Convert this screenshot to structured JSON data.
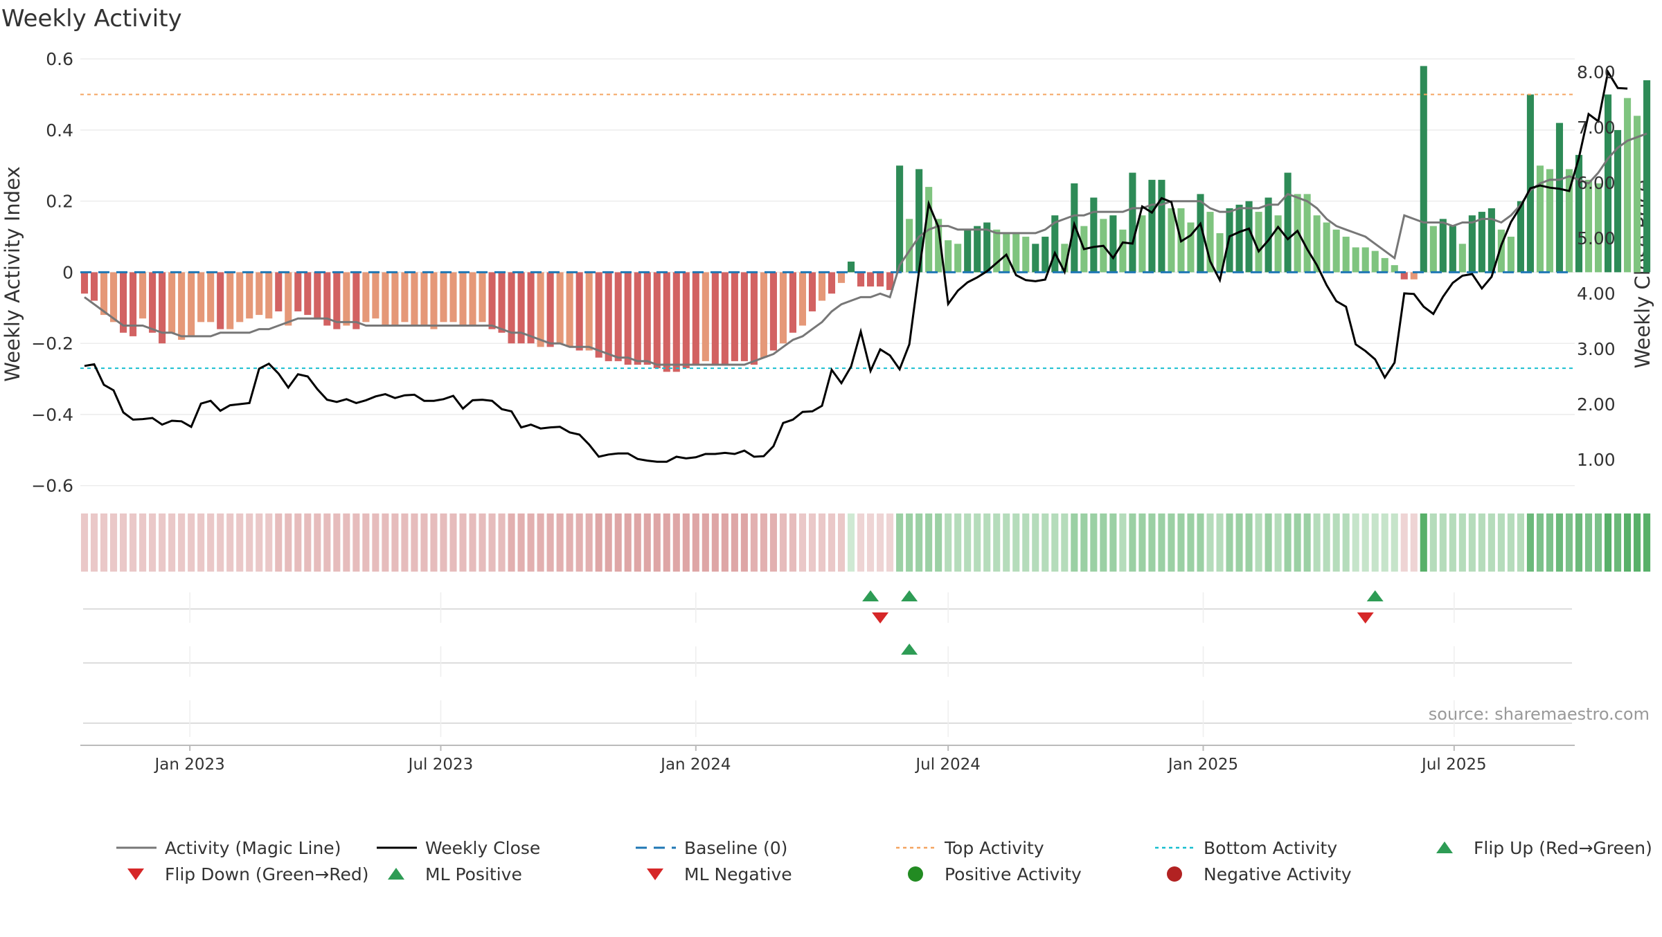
{
  "chart_data": {
    "type": "bar",
    "title": "Weekly Activity",
    "ylabel": "Weekly Activity Index",
    "y2label": "Weekly Close Price",
    "ylim": [
      -0.62,
      0.61
    ],
    "y2lim": [
      0.4,
      8.3
    ],
    "yticks": [
      0.6,
      0.4,
      0.2,
      0,
      -0.2,
      -0.4,
      -0.6
    ],
    "ytick_labels": [
      "0.6",
      "0.4",
      "0.2",
      "0",
      "−0.2",
      "−0.4",
      "−0.6"
    ],
    "y2ticks": [
      8,
      7,
      6,
      5,
      4,
      3,
      2,
      1
    ],
    "y2tick_labels": [
      "8.00",
      "7.00",
      "6.00",
      "5.00",
      "4.00",
      "3.00",
      "2.00",
      "1.00"
    ],
    "x_start": "2022-10-17",
    "x_end": "2025-09-22",
    "x_axis_start": "2022-10-14",
    "x_axis_end": "2025-09-26",
    "x_ticks": [
      "2023-01-01",
      "2023-07-01",
      "2024-01-01",
      "2024-07-01",
      "2025-01-01",
      "2025-07-01"
    ],
    "x_tick_labels": [
      "Jan 2023",
      "Jul 2023",
      "Jan 2024",
      "Jul 2024",
      "Jan 2025",
      "Jul 2025"
    ],
    "grid": true,
    "legend_position": "bottom",
    "top_activity": 0.5,
    "bottom_activity": -0.27,
    "baseline": 0,
    "activity": [
      -0.06,
      -0.08,
      -0.12,
      -0.14,
      -0.17,
      -0.18,
      -0.13,
      -0.17,
      -0.2,
      -0.17,
      -0.19,
      -0.18,
      -0.14,
      -0.14,
      -0.16,
      -0.16,
      -0.14,
      -0.13,
      -0.12,
      -0.13,
      -0.11,
      -0.15,
      -0.11,
      -0.12,
      -0.13,
      -0.15,
      -0.16,
      -0.15,
      -0.16,
      -0.14,
      -0.13,
      -0.15,
      -0.15,
      -0.14,
      -0.15,
      -0.15,
      -0.16,
      -0.14,
      -0.14,
      -0.15,
      -0.15,
      -0.14,
      -0.16,
      -0.17,
      -0.2,
      -0.2,
      -0.2,
      -0.21,
      -0.21,
      -0.2,
      -0.21,
      -0.22,
      -0.22,
      -0.24,
      -0.25,
      -0.25,
      -0.26,
      -0.26,
      -0.26,
      -0.27,
      -0.28,
      -0.28,
      -0.27,
      -0.26,
      -0.25,
      -0.26,
      -0.26,
      -0.25,
      -0.25,
      -0.26,
      -0.24,
      -0.22,
      -0.2,
      -0.17,
      -0.15,
      -0.11,
      -0.08,
      -0.06,
      -0.03,
      0.03,
      -0.04,
      -0.04,
      -0.04,
      -0.05,
      0.3,
      0.15,
      0.29,
      0.24,
      0.15,
      0.09,
      0.08,
      0.12,
      0.13,
      0.14,
      0.12,
      0.11,
      0.11,
      0.1,
      0.08,
      0.1,
      0.16,
      0.08,
      0.25,
      0.13,
      0.21,
      0.15,
      0.16,
      0.12,
      0.28,
      0.16,
      0.26,
      0.26,
      0.18,
      0.18,
      0.14,
      0.22,
      0.17,
      0.11,
      0.18,
      0.19,
      0.2,
      0.17,
      0.21,
      0.16,
      0.28,
      0.22,
      0.22,
      0.16,
      0.14,
      0.12,
      0.1,
      0.07,
      0.07,
      0.06,
      0.04,
      0.02,
      -0.02,
      -0.02,
      0.58,
      0.13,
      0.15,
      0.13,
      0.08,
      0.16,
      0.17,
      0.18,
      0.12,
      0.1,
      0.2,
      0.5,
      0.3,
      0.29,
      0.42,
      0.29,
      0.33,
      0.26,
      0.25,
      0.5,
      0.4,
      0.49,
      0.44,
      0.54
    ],
    "bar_shades": [
      "#d26262",
      "#d26262",
      "#e59878",
      "#e59878",
      "#d26262",
      "#d26262",
      "#e59878",
      "#d26262",
      "#d26262",
      "#e59878",
      "#e59878",
      "#e59878",
      "#e59878",
      "#e59878",
      "#d26262",
      "#e59878",
      "#e59878",
      "#e59878",
      "#e59878",
      "#e59878",
      "#d26262",
      "#e59878",
      "#d26262",
      "#d26262",
      "#d26262",
      "#d26262",
      "#d26262",
      "#e59878",
      "#d26262",
      "#e59878",
      "#e59878",
      "#e59878",
      "#e59878",
      "#e59878",
      "#e59878",
      "#e59878",
      "#e59878",
      "#e59878",
      "#e59878",
      "#e59878",
      "#e59878",
      "#e59878",
      "#d26262",
      "#d26262",
      "#d26262",
      "#d26262",
      "#d26262",
      "#e59878",
      "#d26262",
      "#e59878",
      "#e59878",
      "#d26262",
      "#e59878",
      "#d26262",
      "#d26262",
      "#d26262",
      "#d26262",
      "#d26262",
      "#d26262",
      "#d26262",
      "#d26262",
      "#d26262",
      "#d26262",
      "#d26262",
      "#e59878",
      "#d26262",
      "#d26262",
      "#d26262",
      "#d26262",
      "#d26262",
      "#e59878",
      "#d26262",
      "#e59878",
      "#d26262",
      "#e59878",
      "#d26262",
      "#e59878",
      "#d26262",
      "#e59878",
      "#2e8b57",
      "#d26262",
      "#d26262",
      "#d26262",
      "#d26262",
      "#2e8b57",
      "#7fc47f",
      "#2e8b57",
      "#7fc47f",
      "#7fc47f",
      "#7fc47f",
      "#7fc47f",
      "#2e8b57",
      "#2e8b57",
      "#2e8b57",
      "#7fc47f",
      "#7fc47f",
      "#7fc47f",
      "#7fc47f",
      "#2e8b57",
      "#2e8b57",
      "#2e8b57",
      "#7fc47f",
      "#2e8b57",
      "#7fc47f",
      "#2e8b57",
      "#7fc47f",
      "#2e8b57",
      "#7fc47f",
      "#2e8b57",
      "#7fc47f",
      "#2e8b57",
      "#2e8b57",
      "#7fc47f",
      "#7fc47f",
      "#7fc47f",
      "#2e8b57",
      "#7fc47f",
      "#7fc47f",
      "#2e8b57",
      "#2e8b57",
      "#2e8b57",
      "#7fc47f",
      "#2e8b57",
      "#7fc47f",
      "#2e8b57",
      "#7fc47f",
      "#7fc47f",
      "#7fc47f",
      "#7fc47f",
      "#7fc47f",
      "#7fc47f",
      "#7fc47f",
      "#7fc47f",
      "#7fc47f",
      "#7fc47f",
      "#7fc47f",
      "#d26262",
      "#e59878",
      "#2e8b57",
      "#7fc47f",
      "#2e8b57",
      "#2e8b57",
      "#7fc47f",
      "#2e8b57",
      "#2e8b57",
      "#2e8b57",
      "#7fc47f",
      "#7fc47f",
      "#2e8b57",
      "#2e8b57",
      "#7fc47f",
      "#7fc47f",
      "#2e8b57",
      "#7fc47f",
      "#2e8b57",
      "#7fc47f",
      "#7fc47f",
      "#2e8b57",
      "#2e8b57",
      "#7fc47f",
      "#7fc47f",
      "#2e8b57"
    ],
    "heat_colors": [
      "#eac8c8",
      "#eac8c8",
      "#eac8c8",
      "#eac8c8",
      "#eac8c8",
      "#eac8c8",
      "#eac8c8",
      "#eac8c8",
      "#eac8c8",
      "#eac8c8",
      "#eac8c8",
      "#eac8c8",
      "#eac8c8",
      "#eac8c8",
      "#eac8c8",
      "#eac8c8",
      "#eac8c8",
      "#eac8c8",
      "#eac8c8",
      "#eac8c8",
      "#e6bcbc",
      "#e6bcbc",
      "#e6bcbc",
      "#e6bcbc",
      "#e6bcbc",
      "#e6bcbc",
      "#e6bcbc",
      "#e6bcbc",
      "#e6bcbc",
      "#e6bcbc",
      "#e6bcbc",
      "#e6bcbc",
      "#e6bcbc",
      "#e6bcbc",
      "#e6bcbc",
      "#e6bcbc",
      "#e6bcbc",
      "#e6bcbc",
      "#e6bcbc",
      "#e6bcbc",
      "#e6bcbc",
      "#e6bcbc",
      "#e6bcbc",
      "#e6bcbc",
      "#e2b0b0",
      "#e2b0b0",
      "#e2b0b0",
      "#e2b0b0",
      "#e2b0b0",
      "#e2b0b0",
      "#e2b0b0",
      "#e2b0b0",
      "#e2b0b0",
      "#dea6a6",
      "#dea6a6",
      "#dea6a6",
      "#dea6a6",
      "#dea6a6",
      "#dea6a6",
      "#dea6a6",
      "#dea6a6",
      "#dea6a6",
      "#dea6a6",
      "#dea6a6",
      "#dea6a6",
      "#dea6a6",
      "#dea6a6",
      "#dea6a6",
      "#dea6a6",
      "#e2b0b0",
      "#e2b0b0",
      "#e2b0b0",
      "#e6bcbc",
      "#e6bcbc",
      "#eac8c8",
      "#eac8c8",
      "#eac8c8",
      "#eac8c8",
      "#eac8c8",
      "#cfe9d3",
      "#eed4d4",
      "#eed4d4",
      "#eed4d4",
      "#eed4d4",
      "#9bd0a4",
      "#9bd0a4",
      "#9bd0a4",
      "#9bd0a4",
      "#9bd0a4",
      "#b5dcbb",
      "#b5dcbb",
      "#b5dcbb",
      "#b5dcbb",
      "#b5dcbb",
      "#b5dcbb",
      "#b5dcbb",
      "#b5dcbb",
      "#b5dcbb",
      "#b5dcbb",
      "#b5dcbb",
      "#b5dcbb",
      "#b5dcbb",
      "#9bd0a4",
      "#9bd0a4",
      "#9bd0a4",
      "#9bd0a4",
      "#9bd0a4",
      "#b5dcbb",
      "#9bd0a4",
      "#9bd0a4",
      "#9bd0a4",
      "#9bd0a4",
      "#9bd0a4",
      "#9bd0a4",
      "#9bd0a4",
      "#9bd0a4",
      "#b5dcbb",
      "#b5dcbb",
      "#9bd0a4",
      "#9bd0a4",
      "#9bd0a4",
      "#b5dcbb",
      "#9bd0a4",
      "#b5dcbb",
      "#9bd0a4",
      "#9bd0a4",
      "#9bd0a4",
      "#b5dcbb",
      "#b5dcbb",
      "#b5dcbb",
      "#b5dcbb",
      "#c6e4ca",
      "#c6e4ca",
      "#c6e4ca",
      "#c6e4ca",
      "#c6e4ca",
      "#eed4d4",
      "#eed4d4",
      "#58b069",
      "#b5dcbb",
      "#b5dcbb",
      "#b5dcbb",
      "#b5dcbb",
      "#b5dcbb",
      "#b5dcbb",
      "#b5dcbb",
      "#b5dcbb",
      "#b5dcbb",
      "#b5dcbb",
      "#6bb97a",
      "#7cc18a",
      "#7cc18a",
      "#6bb97a",
      "#7cc18a",
      "#6bb97a",
      "#7cc18a",
      "#7cc18a",
      "#58b069",
      "#6bb97a",
      "#58b069",
      "#58b069",
      "#58b069"
    ],
    "magic_line": [
      -0.07,
      -0.09,
      -0.11,
      -0.13,
      -0.15,
      -0.15,
      -0.15,
      -0.16,
      -0.17,
      -0.17,
      -0.18,
      -0.18,
      -0.18,
      -0.18,
      -0.17,
      -0.17,
      -0.17,
      -0.17,
      -0.16,
      -0.16,
      -0.15,
      -0.14,
      -0.13,
      -0.13,
      -0.13,
      -0.13,
      -0.14,
      -0.14,
      -0.14,
      -0.15,
      -0.15,
      -0.15,
      -0.15,
      -0.15,
      -0.15,
      -0.15,
      -0.15,
      -0.15,
      -0.15,
      -0.15,
      -0.15,
      -0.15,
      -0.15,
      -0.16,
      -0.17,
      -0.17,
      -0.18,
      -0.19,
      -0.2,
      -0.2,
      -0.21,
      -0.21,
      -0.21,
      -0.22,
      -0.23,
      -0.24,
      -0.24,
      -0.25,
      -0.25,
      -0.26,
      -0.26,
      -0.26,
      -0.26,
      -0.26,
      -0.26,
      -0.26,
      -0.26,
      -0.26,
      -0.26,
      -0.25,
      -0.24,
      -0.23,
      -0.21,
      -0.19,
      -0.18,
      -0.16,
      -0.14,
      -0.11,
      -0.09,
      -0.08,
      -0.07,
      -0.07,
      -0.06,
      -0.07,
      0.02,
      0.06,
      0.1,
      0.12,
      0.13,
      0.13,
      0.12,
      0.12,
      0.12,
      0.12,
      0.11,
      0.11,
      0.11,
      0.11,
      0.11,
      0.12,
      0.14,
      0.15,
      0.16,
      0.16,
      0.17,
      0.17,
      0.17,
      0.17,
      0.18,
      0.18,
      0.19,
      0.19,
      0.2,
      0.2,
      0.2,
      0.2,
      0.18,
      0.17,
      0.17,
      0.18,
      0.18,
      0.18,
      0.19,
      0.19,
      0.22,
      0.21,
      0.2,
      0.18,
      0.15,
      0.13,
      0.12,
      0.11,
      0.1,
      0.08,
      0.06,
      0.04,
      0.16,
      0.15,
      0.14,
      0.14,
      0.14,
      0.13,
      0.14,
      0.14,
      0.15,
      0.15,
      0.14,
      0.16,
      0.19,
      0.23,
      0.25,
      0.26,
      0.26,
      0.27,
      0.26,
      0.25,
      0.28,
      0.32,
      0.35,
      0.37,
      0.38,
      0.39,
      0.42
    ],
    "weekly_close": [
      2.69,
      2.72,
      2.35,
      2.25,
      1.85,
      1.72,
      1.73,
      1.75,
      1.63,
      1.7,
      1.69,
      1.59,
      2.01,
      2.06,
      1.88,
      1.98,
      2.0,
      2.02,
      2.64,
      2.73,
      2.55,
      2.3,
      2.54,
      2.5,
      2.27,
      2.08,
      2.04,
      2.09,
      2.02,
      2.07,
      2.14,
      2.18,
      2.11,
      2.16,
      2.17,
      2.06,
      2.06,
      2.09,
      2.15,
      1.92,
      2.07,
      2.08,
      2.06,
      1.91,
      1.87,
      1.58,
      1.63,
      1.56,
      1.58,
      1.59,
      1.49,
      1.45,
      1.27,
      1.05,
      1.09,
      1.11,
      1.11,
      1.01,
      0.98,
      0.96,
      0.96,
      1.05,
      1.02,
      1.04,
      1.1,
      1.1,
      1.12,
      1.1,
      1.16,
      1.05,
      1.06,
      1.24,
      1.66,
      1.72,
      1.86,
      1.87,
      1.97,
      2.62,
      2.38,
      2.68,
      3.31,
      2.6,
      2.99,
      2.88,
      2.63,
      3.08,
      4.4,
      5.62,
      5.2,
      3.81,
      4.05,
      4.2,
      4.29,
      4.4,
      4.55,
      4.7,
      4.33,
      4.24,
      4.22,
      4.25,
      4.73,
      4.39,
      5.25,
      4.8,
      4.84,
      4.86,
      4.64,
      4.92,
      4.9,
      5.57,
      5.46,
      5.72,
      5.65,
      4.94,
      5.05,
      5.26,
      4.58,
      4.24,
      5.03,
      5.11,
      5.17,
      4.76,
      4.96,
      5.2,
      4.98,
      5.13,
      4.8,
      4.51,
      4.15,
      3.86,
      3.76,
      3.08,
      2.96,
      2.81,
      2.48,
      2.75,
      4.0,
      3.99,
      3.76,
      3.63,
      3.94,
      4.19,
      4.32,
      4.35,
      4.09,
      4.3,
      4.87,
      5.29,
      5.57,
      5.9,
      5.95,
      5.91,
      5.89,
      5.85,
      6.45,
      7.24,
      7.11,
      8.0,
      7.71,
      7.7
    ],
    "flip_up": [
      "2024-05-06",
      "2024-06-03",
      "2025-05-05"
    ],
    "flip_down": [
      "2024-05-13",
      "2025-04-28"
    ],
    "ml_positive": [
      "2024-06-03"
    ],
    "ml_negative": [],
    "positive_activity": [],
    "negative_activity": [],
    "source": "source: sharemaestro.com",
    "legend": [
      {
        "label": "Activity (Magic Line)",
        "kind": "line",
        "color": "#777777"
      },
      {
        "label": "Weekly Close",
        "kind": "line",
        "color": "#000000"
      },
      {
        "label": "Baseline (0)",
        "kind": "dashed",
        "color": "#1f77b4"
      },
      {
        "label": "Top Activity",
        "kind": "dotted",
        "color": "#f4a460"
      },
      {
        "label": "Bottom Activity",
        "kind": "dotted",
        "color": "#17becf"
      },
      {
        "label": "Flip Up (Red→Green)",
        "kind": "tri-up",
        "color": "#2e9c55"
      },
      {
        "label": "Flip Down (Green→Red)",
        "kind": "tri-down",
        "color": "#d62728"
      },
      {
        "label": "ML Positive",
        "kind": "tri-up",
        "color": "#2e9c55"
      },
      {
        "label": "ML Negative",
        "kind": "tri-down",
        "color": "#d62728"
      },
      {
        "label": "Positive Activity",
        "kind": "dot",
        "color": "#228b22"
      },
      {
        "label": "Negative Activity",
        "kind": "dot",
        "color": "#b22222"
      }
    ]
  }
}
